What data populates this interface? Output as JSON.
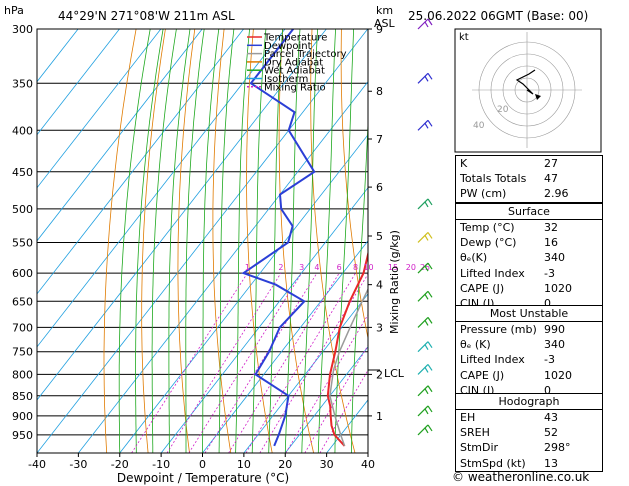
{
  "header": {
    "left_label": "hPa",
    "location": "44°29'N  271°08'W  211m  ASL",
    "right_unit_top": "km",
    "right_unit_bottom": "ASL",
    "datetime": "25.06.2022  06GMT  (Base: 00)"
  },
  "footer": {
    "copyright": "© weatheronline.co.uk"
  },
  "hodograph": {
    "label": "kt",
    "ring_labels": [
      "20",
      "40"
    ]
  },
  "chart_data": {
    "type": "line",
    "title": "",
    "xlabel": "Dewpoint / Temperature (°C)",
    "ylabel": "hPa",
    "right_axis_label": "Mixing Ratio (g/kg)",
    "xlim": [
      -40,
      40
    ],
    "ylim": [
      1000,
      300
    ],
    "pressure_ticks": [
      300,
      350,
      400,
      450,
      500,
      550,
      600,
      650,
      700,
      750,
      800,
      850,
      900,
      950
    ],
    "temperature_ticks": [
      -40,
      -30,
      -20,
      -10,
      0,
      10,
      20,
      30,
      40
    ],
    "km_ticks": [
      {
        "p": 300,
        "label": "9"
      },
      {
        "p": 358,
        "label": "8"
      },
      {
        "p": 410,
        "label": "7"
      },
      {
        "p": 470,
        "label": "6"
      },
      {
        "p": 540,
        "label": "5"
      },
      {
        "p": 620,
        "label": "4"
      },
      {
        "p": 700,
        "label": "3"
      },
      {
        "p": 800,
        "label": "2"
      },
      {
        "p": 900,
        "label": "1"
      }
    ],
    "lcl_label": "LCL",
    "lcl_pressure": 790,
    "mixing_ratio_labels": [
      "1",
      "2",
      "3",
      "4",
      "6",
      "8",
      "10",
      "15",
      "20",
      "25"
    ],
    "legend": [
      {
        "name": "Temperature",
        "color": "#e8282a",
        "dash": ""
      },
      {
        "name": "Dewpoint",
        "color": "#2b3fd6",
        "dash": ""
      },
      {
        "name": "Parcel Trajectory",
        "color": "#9a9a9a",
        "dash": ""
      },
      {
        "name": "Dry Adiabat",
        "color": "#e07b00",
        "dash": ""
      },
      {
        "name": "Wet Adiabat",
        "color": "#1ea81e",
        "dash": ""
      },
      {
        "name": "Isotherm",
        "color": "#20a0e0",
        "dash": ""
      },
      {
        "name": "Mixing Ratio",
        "color": "#d020c8",
        "dash": "2,2"
      }
    ],
    "series": [
      {
        "name": "Temperature",
        "color": "#e8282a",
        "points": [
          [
            980,
            33
          ],
          [
            950,
            28.5
          ],
          [
            925,
            26
          ],
          [
            900,
            24
          ],
          [
            875,
            22
          ],
          [
            850,
            19.5
          ],
          [
            800,
            16
          ],
          [
            750,
            13
          ],
          [
            700,
            9.5
          ],
          [
            650,
            7
          ],
          [
            600,
            5
          ],
          [
            550,
            1
          ],
          [
            500,
            -2
          ],
          [
            450,
            -7
          ],
          [
            400,
            -12.5
          ],
          [
            350,
            -19
          ],
          [
            300,
            -27
          ]
        ]
      },
      {
        "name": "Dewpoint",
        "color": "#2b3fd6",
        "points": [
          [
            980,
            16
          ],
          [
            950,
            15
          ],
          [
            900,
            13
          ],
          [
            850,
            10
          ],
          [
            800,
            -2
          ],
          [
            750,
            -3
          ],
          [
            700,
            -5
          ],
          [
            650,
            -4
          ],
          [
            620,
            -14
          ],
          [
            600,
            -24
          ],
          [
            550,
            -19
          ],
          [
            525,
            -21
          ],
          [
            500,
            -27
          ],
          [
            480,
            -30
          ],
          [
            450,
            -26
          ],
          [
            400,
            -40
          ],
          [
            380,
            -42
          ],
          [
            350,
            -58
          ],
          [
            300,
            -58
          ]
        ]
      },
      {
        "name": "Parcel Trajectory",
        "color": "#9a9a9a",
        "points": [
          [
            980,
            33
          ],
          [
            950,
            30
          ],
          [
            900,
            25
          ],
          [
            850,
            20
          ],
          [
            790,
            16
          ],
          [
            750,
            14
          ],
          [
            700,
            12
          ],
          [
            650,
            10
          ],
          [
            600,
            8
          ],
          [
            550,
            5
          ],
          [
            500,
            2
          ],
          [
            450,
            -2
          ],
          [
            400,
            -7
          ],
          [
            350,
            -13
          ],
          [
            300,
            -20
          ]
        ]
      }
    ],
    "wind_barbs": [
      {
        "p": 300,
        "color": "#8020c0"
      },
      {
        "p": 350,
        "color": "#3030d0"
      },
      {
        "p": 400,
        "color": "#3030d0"
      },
      {
        "p": 500,
        "color": "#20a060"
      },
      {
        "p": 550,
        "color": "#d0c020"
      },
      {
        "p": 600,
        "color": "#20a020"
      },
      {
        "p": 650,
        "color": "#20a020"
      },
      {
        "p": 700,
        "color": "#20a020"
      },
      {
        "p": 750,
        "color": "#20b0b0"
      },
      {
        "p": 800,
        "color": "#20b0b0"
      },
      {
        "p": 850,
        "color": "#20a020"
      },
      {
        "p": 900,
        "color": "#20a020"
      },
      {
        "p": 950,
        "color": "#20a020"
      }
    ]
  },
  "indices": {
    "top": [
      {
        "label": "K",
        "value": "27"
      },
      {
        "label": "Totals Totals",
        "value": "47"
      },
      {
        "label": "PW (cm)",
        "value": "2.96"
      }
    ],
    "surface": {
      "title": "Surface",
      "rows": [
        {
          "label": "Temp (°C)",
          "value": "32"
        },
        {
          "label": "Dewp (°C)",
          "value": "16"
        },
        {
          "label": "θₑ(K)",
          "value": "340"
        },
        {
          "label": "Lifted Index",
          "value": "-3"
        },
        {
          "label": "CAPE (J)",
          "value": "1020"
        },
        {
          "label": "CIN (J)",
          "value": "0"
        }
      ]
    },
    "most_unstable": {
      "title": "Most Unstable",
      "rows": [
        {
          "label": "Pressure (mb)",
          "value": "990"
        },
        {
          "label": "θₑ (K)",
          "value": "340"
        },
        {
          "label": "Lifted Index",
          "value": "-3"
        },
        {
          "label": "CAPE (J)",
          "value": "1020"
        },
        {
          "label": "CIN (J)",
          "value": "0"
        }
      ]
    },
    "hodograph": {
      "title": "Hodograph",
      "rows": [
        {
          "label": "EH",
          "value": "43"
        },
        {
          "label": "SREH",
          "value": "52"
        },
        {
          "label": "StmDir",
          "value": "298°"
        },
        {
          "label": "StmSpd (kt)",
          "value": "13"
        }
      ]
    }
  }
}
